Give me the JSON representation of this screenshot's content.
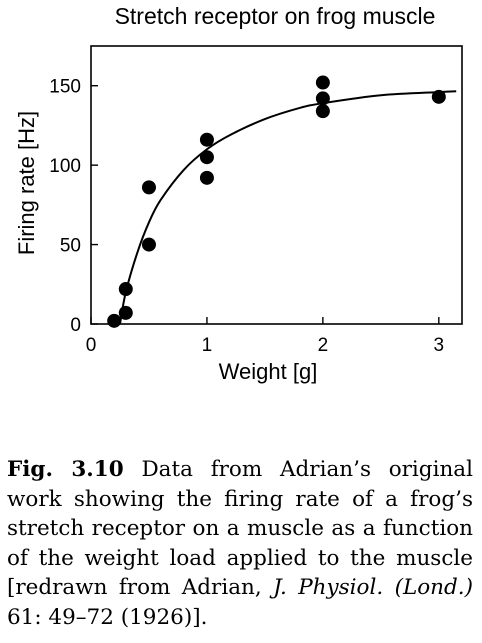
{
  "chart_data": {
    "type": "scatter",
    "title": "Stretch receptor on frog muscle",
    "xlabel": "Weight [g]",
    "ylabel": "Firing rate [Hz]",
    "xlim": [
      0,
      3.2
    ],
    "ylim": [
      0,
      175
    ],
    "xticks": [
      0,
      1,
      2,
      3
    ],
    "xtick_labels": [
      "0",
      "1",
      "2",
      "3"
    ],
    "yticks": [
      0,
      50,
      100,
      150
    ],
    "ytick_labels": [
      "0",
      "50",
      "100",
      "150"
    ],
    "grid": false,
    "legend": "none",
    "point_color": "#000000",
    "series": [
      {
        "x": [
          0.2,
          0.3,
          0.3,
          0.5,
          0.5,
          1.0,
          1.0,
          1.0,
          2.0,
          2.0,
          2.0,
          3.0
        ],
        "y": [
          2,
          7,
          22,
          86,
          50,
          116,
          105,
          92,
          152,
          142,
          134,
          143
        ]
      }
    ],
    "fit_curve": [
      {
        "x": 0.25,
        "y": 0
      },
      {
        "x": 0.3,
        "y": 20
      },
      {
        "x": 0.4,
        "y": 45
      },
      {
        "x": 0.5,
        "y": 64
      },
      {
        "x": 0.6,
        "y": 78
      },
      {
        "x": 0.8,
        "y": 97
      },
      {
        "x": 1.0,
        "y": 110
      },
      {
        "x": 1.2,
        "y": 119
      },
      {
        "x": 1.5,
        "y": 129
      },
      {
        "x": 1.8,
        "y": 136
      },
      {
        "x": 2.0,
        "y": 139
      },
      {
        "x": 2.5,
        "y": 144
      },
      {
        "x": 3.0,
        "y": 146
      },
      {
        "x": 3.15,
        "y": 146.5
      }
    ]
  },
  "caption": {
    "label": "Fig. 3.10",
    "text_1": " Data from Adrian’s original work showing the firing rate of a frog’s stretch receptor on a muscle as a function of the weight load applied to the muscle [redrawn from Adrian, ",
    "journal": "J. Physiol. (Lond.)",
    "text_2": " 61: 49–72 (1926)]."
  }
}
